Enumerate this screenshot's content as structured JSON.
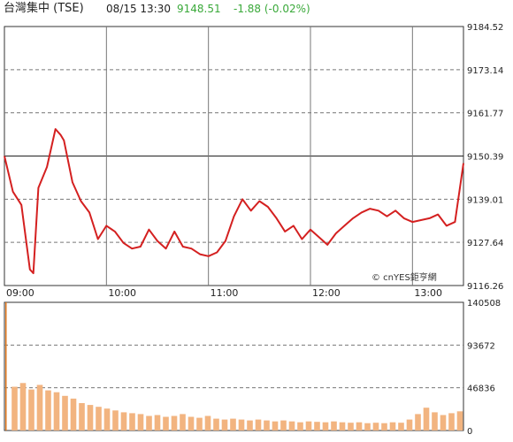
{
  "header": {
    "name": "台灣集中 (TSE)",
    "datetime": "08/15 13:30",
    "price": "9148.51",
    "change": "-1.88 (-0.02%)"
  },
  "watermark": "© cnYES鉅亨網",
  "colors": {
    "price_line": "#d42020",
    "volume_bar": "#f2b480",
    "volume_bar_last": "#e07a20",
    "change_text": "#3aa93a",
    "grid": "#777777"
  },
  "chart_data": [
    {
      "type": "line",
      "title": "",
      "xlabel": "",
      "ylabel": "",
      "x_ticks": [
        "09:00",
        "10:00",
        "11:00",
        "12:00",
        "13:00"
      ],
      "x_range": [
        "09:00",
        "13:30"
      ],
      "y_ticks": [
        9184.52,
        9173.14,
        9161.77,
        9150.39,
        9139.01,
        9127.64,
        9116.26
      ],
      "y_ticks_labels": [
        "9184.52",
        "9173.14",
        "9161.77",
        "9150.39",
        "9139.01",
        "9127.64",
        "9116.26"
      ],
      "ylim": [
        9116.26,
        9184.52
      ],
      "reference_line": 9150.39,
      "grid": true,
      "series": [
        {
          "x": [
            "09:00",
            "09:05",
            "09:10",
            "09:15",
            "09:17",
            "09:20",
            "09:25",
            "09:30",
            "09:33",
            "09:35",
            "09:40",
            "09:45",
            "09:50",
            "09:55",
            "10:00",
            "10:05",
            "10:10",
            "10:15",
            "10:20",
            "10:25",
            "10:30",
            "10:35",
            "10:40",
            "10:45",
            "10:50",
            "10:55",
            "11:00",
            "11:05",
            "11:10",
            "11:15",
            "11:20",
            "11:25",
            "11:30",
            "11:35",
            "11:40",
            "11:45",
            "11:50",
            "11:55",
            "12:00",
            "12:05",
            "12:10",
            "12:15",
            "12:20",
            "12:25",
            "12:30",
            "12:35",
            "12:40",
            "12:45",
            "12:50",
            "12:55",
            "13:00",
            "13:05",
            "13:10",
            "13:15",
            "13:20",
            "13:25",
            "13:30"
          ],
          "values": [
            9150.39,
            9141.0,
            9137.5,
            9120.5,
            9119.5,
            9142.0,
            9147.5,
            9157.5,
            9156.0,
            9154.5,
            9143.5,
            9138.5,
            9135.5,
            9128.5,
            9132.0,
            9130.5,
            9127.5,
            9126.0,
            9126.5,
            9131.0,
            9128.0,
            9126.0,
            9130.5,
            9126.5,
            9126.0,
            9124.5,
            9124.0,
            9125.0,
            9128.0,
            9134.5,
            9139.0,
            9136.0,
            9138.5,
            9137.0,
            9134.0,
            9130.5,
            9132.0,
            9128.5,
            9131.0,
            9129.0,
            9127.0,
            9130.0,
            9132.0,
            9134.0,
            9135.5,
            9136.5,
            9136.0,
            9134.5,
            9136.0,
            9134.0,
            9133.0,
            9133.5,
            9134.0,
            9135.0,
            9132.0,
            9133.0,
            9148.51
          ]
        }
      ]
    },
    {
      "type": "bar",
      "title": "",
      "xlabel": "",
      "ylabel": "",
      "y_ticks": [
        0,
        46836,
        93672,
        140508
      ],
      "y_ticks_labels": [
        "0",
        "46836",
        "93672",
        "140508"
      ],
      "ylim": [
        0,
        140508
      ],
      "grid": true,
      "x": [
        "09:00",
        "09:05",
        "09:10",
        "09:15",
        "09:20",
        "09:25",
        "09:30",
        "09:35",
        "09:40",
        "09:45",
        "09:50",
        "09:55",
        "10:00",
        "10:05",
        "10:10",
        "10:15",
        "10:20",
        "10:25",
        "10:30",
        "10:35",
        "10:40",
        "10:45",
        "10:50",
        "10:55",
        "11:00",
        "11:05",
        "11:10",
        "11:15",
        "11:20",
        "11:25",
        "11:30",
        "11:35",
        "11:40",
        "11:45",
        "11:50",
        "11:55",
        "12:00",
        "12:05",
        "12:10",
        "12:15",
        "12:20",
        "12:25",
        "12:30",
        "12:35",
        "12:40",
        "12:45",
        "12:50",
        "12:55",
        "13:00",
        "13:05",
        "13:10",
        "13:15",
        "13:20",
        "13:25",
        "13:30"
      ],
      "values": [
        140508,
        48000,
        52000,
        45000,
        50000,
        44000,
        42000,
        38000,
        35000,
        30000,
        28000,
        26000,
        24000,
        22000,
        20000,
        19000,
        18000,
        16000,
        17000,
        15000,
        16000,
        18000,
        15000,
        14000,
        16000,
        13000,
        12000,
        13000,
        12000,
        11000,
        12000,
        11000,
        10000,
        11000,
        10000,
        9000,
        10000,
        9500,
        9000,
        10000,
        9000,
        8500,
        9000,
        8000,
        8500,
        8000,
        9000,
        8500,
        12000,
        18000,
        25000,
        20000,
        17000,
        19000,
        21000
      ]
    }
  ]
}
